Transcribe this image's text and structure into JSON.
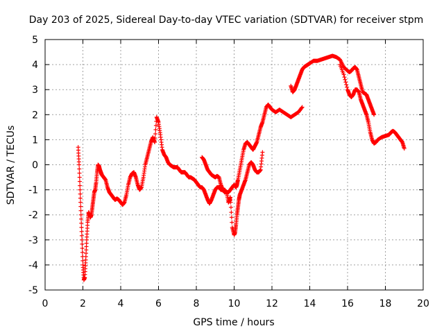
{
  "chart_data": {
    "type": "scatter",
    "title": "Day 203 of 2025, Sidereal Day-to-day VTEC variation (SDTVAR) for receiver stpm",
    "xlabel": "GPS time / hours",
    "ylabel": "SDTVAR / TECUs",
    "xlim": [
      0,
      20
    ],
    "ylim": [
      -5,
      5
    ],
    "xticks": [
      0,
      2,
      4,
      6,
      8,
      10,
      12,
      14,
      16,
      18,
      20
    ],
    "yticks": [
      -5,
      -4,
      -3,
      -2,
      -1,
      0,
      1,
      2,
      3,
      4,
      5
    ],
    "grid": true,
    "marker": "+",
    "color": "#ff0000",
    "series": [
      {
        "name": "stpm",
        "x": [
          1.75,
          1.8,
          1.85,
          1.9,
          1.95,
          2.0,
          2.05,
          2.1,
          2.15,
          2.2,
          2.25,
          2.3,
          2.35,
          2.4,
          2.45,
          2.5,
          2.55,
          2.6,
          2.65,
          2.7,
          2.75,
          2.8,
          2.85,
          2.9,
          2.95,
          3.0,
          3.1,
          3.2,
          3.3,
          3.4,
          3.5,
          3.6,
          3.7,
          3.8,
          3.9,
          4.0,
          4.1,
          4.2,
          4.3,
          4.4,
          4.5,
          4.6,
          4.7,
          4.8,
          4.9,
          5.0,
          5.1,
          5.2,
          5.3,
          5.4,
          5.5,
          5.6,
          5.7,
          5.8,
          5.9,
          6.0,
          6.1,
          6.2,
          6.3,
          6.4,
          6.5,
          6.6,
          6.7,
          6.8,
          6.9,
          7.0,
          7.1,
          7.2,
          7.3,
          7.4,
          7.5,
          7.6,
          7.7,
          7.8,
          7.9,
          8.0,
          8.1,
          8.2,
          8.3,
          8.4,
          8.5,
          8.6,
          8.7,
          8.8,
          8.9,
          9.0,
          9.1,
          9.2,
          9.3,
          9.4,
          9.5,
          9.6,
          9.7,
          9.8,
          9.9,
          10.0,
          10.05,
          10.1,
          10.15,
          10.2,
          10.3,
          10.4,
          10.5,
          10.6,
          10.7,
          10.8,
          10.9,
          11.0,
          11.1,
          11.2,
          11.3,
          11.4,
          11.5,
          11.6,
          11.7,
          11.8,
          11.9,
          12.0,
          12.2,
          12.4,
          12.6,
          12.8,
          13.0,
          13.2,
          13.4,
          13.6
        ],
        "y": [
          0.7,
          0.0,
          -1.0,
          -2.0,
          -3.0,
          -4.0,
          -4.6,
          -4.5,
          -3.8,
          -3.0,
          -2.3,
          -1.9,
          -2.0,
          -2.1,
          -2.0,
          -1.7,
          -1.4,
          -1.1,
          -1.0,
          -0.7,
          -0.3,
          0.0,
          -0.05,
          -0.2,
          -0.3,
          -0.4,
          -0.5,
          -0.6,
          -0.9,
          -1.1,
          -1.2,
          -1.3,
          -1.4,
          -1.35,
          -1.4,
          -1.5,
          -1.6,
          -1.5,
          -1.2,
          -0.8,
          -0.5,
          -0.35,
          -0.3,
          -0.5,
          -0.8,
          -1.0,
          -0.9,
          -0.5,
          0.0,
          0.3,
          0.6,
          0.9,
          1.1,
          0.9,
          1.9,
          1.7,
          1.2,
          0.6,
          0.4,
          0.3,
          0.1,
          0.0,
          -0.05,
          -0.1,
          -0.1,
          -0.1,
          -0.2,
          -0.3,
          -0.3,
          -0.3,
          -0.4,
          -0.5,
          -0.5,
          -0.55,
          -0.6,
          -0.7,
          -0.8,
          -0.9,
          -0.9,
          -1.0,
          -1.2,
          -1.4,
          -1.55,
          -1.4,
          -1.2,
          -1.0,
          -0.9,
          -0.9,
          -1.0,
          -1.0,
          -1.0,
          -1.1,
          -1.1,
          -1.0,
          -0.9,
          -0.8,
          -0.85,
          -0.9,
          -0.8,
          -0.6,
          -0.2,
          0.2,
          0.6,
          0.85,
          0.9,
          0.8,
          0.7,
          0.6,
          0.75,
          0.9,
          1.2,
          1.5,
          1.7,
          2.0,
          2.3,
          2.4,
          2.3,
          2.2,
          2.1,
          2.2,
          2.1,
          2.0,
          1.9,
          2.0,
          2.1,
          2.3
        ]
      },
      {
        "name": "stpm",
        "x": [
          8.3,
          8.4,
          8.5,
          8.6,
          8.7,
          8.8,
          8.9,
          9.0,
          9.1,
          9.2,
          9.3,
          9.4,
          9.5,
          9.6,
          9.7,
          9.8,
          9.9,
          10.0,
          10.05,
          10.1,
          10.15,
          10.2,
          10.25,
          10.3,
          10.4,
          10.5,
          10.6,
          10.7,
          10.8,
          10.9,
          11.0,
          11.1,
          11.2,
          11.3,
          11.4,
          11.5
        ],
        "y": [
          0.3,
          0.2,
          0.0,
          -0.2,
          -0.3,
          -0.4,
          -0.45,
          -0.5,
          -0.45,
          -0.5,
          -0.8,
          -1.0,
          -1.1,
          -1.1,
          -1.5,
          -1.3,
          -2.5,
          -2.8,
          -2.7,
          -2.4,
          -2.0,
          -1.7,
          -1.4,
          -1.2,
          -1.0,
          -0.8,
          -0.6,
          -0.3,
          0.0,
          0.1,
          0.0,
          -0.2,
          -0.3,
          -0.3,
          -0.2,
          0.5
        ]
      },
      {
        "name": "stpm",
        "x": [
          13.0,
          13.1,
          13.2,
          13.3,
          13.4,
          13.5,
          13.6,
          13.7,
          13.8,
          13.9,
          14.0,
          14.2,
          14.4,
          14.6,
          14.8,
          15.0,
          15.2,
          15.4,
          15.6,
          15.8,
          16.0,
          16.1,
          16.2,
          16.3,
          16.4,
          16.5,
          16.6,
          16.7,
          16.8,
          16.9,
          17.0,
          17.1,
          17.2,
          17.3,
          17.4
        ],
        "y": [
          3.15,
          2.9,
          3.0,
          3.2,
          3.4,
          3.6,
          3.8,
          3.9,
          3.95,
          4.0,
          4.05,
          4.15,
          4.15,
          4.2,
          4.25,
          4.3,
          4.35,
          4.3,
          4.2,
          3.9,
          3.75,
          3.7,
          3.75,
          3.85,
          3.9,
          3.8,
          3.5,
          3.2,
          2.9,
          2.85,
          2.8,
          2.6,
          2.4,
          2.2,
          2.0
        ]
      },
      {
        "name": "stpm",
        "x": [
          15.6,
          15.8,
          16.0,
          16.1,
          16.2,
          16.3,
          16.4,
          16.5,
          16.6,
          16.7,
          16.8,
          16.9,
          17.0,
          17.1,
          17.2,
          17.3,
          17.4,
          17.5,
          17.6,
          17.8,
          18.0,
          18.2,
          18.3,
          18.4,
          18.5,
          18.6,
          18.7,
          18.8,
          18.9,
          19.0
        ],
        "y": [
          4.0,
          3.6,
          3.0,
          2.8,
          2.7,
          2.8,
          3.0,
          3.0,
          2.9,
          2.6,
          2.4,
          2.2,
          2.0,
          1.7,
          1.3,
          1.0,
          0.85,
          0.9,
          1.0,
          1.1,
          1.15,
          1.2,
          1.3,
          1.35,
          1.3,
          1.2,
          1.1,
          1.0,
          0.9,
          0.65
        ]
      },
      {
        "name": "stpm",
        "x": [
          9.7,
          9.8
        ],
        "y": [
          -1.5,
          -1.4
        ]
      }
    ]
  }
}
